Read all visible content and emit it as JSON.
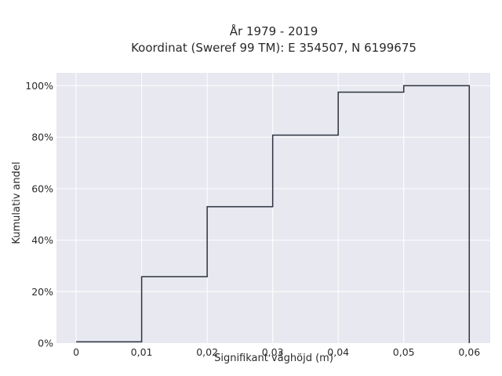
{
  "chart_data": {
    "type": "line",
    "line_shape": "step",
    "title_lines": [
      "År 1979 - 2019",
      "Koordinat (Sweref 99 TM): E 354507, N 6199675"
    ],
    "xlabel": "Signifikant våghöjd (m)",
    "ylabel": "Kumulativ andel",
    "xlim": [
      -0.003,
      0.0632
    ],
    "ylim": [
      0,
      1.05
    ],
    "x_ticks": [
      0,
      0.01,
      0.02,
      0.03,
      0.04,
      0.05,
      0.06
    ],
    "x_tick_labels": [
      "0",
      "0,01",
      "0,02",
      "0,03",
      "0,04",
      "0,05",
      "0,06"
    ],
    "y_ticks": [
      0,
      0.2,
      0.4,
      0.6,
      0.8,
      1.0
    ],
    "y_tick_labels": [
      "0%",
      "20%",
      "40%",
      "60%",
      "80%",
      "100%"
    ],
    "grid": true,
    "series": [
      {
        "x": [
          0,
          0.01,
          0.02,
          0.03,
          0.04,
          0.05,
          0.06
        ],
        "y": [
          0.005,
          0.258,
          0.53,
          0.808,
          0.975,
          1.0,
          0.0
        ]
      }
    ],
    "colors": {
      "plot_bg": "#e8e8f0",
      "grid": "#ffffff",
      "line": "#2c3440"
    }
  }
}
